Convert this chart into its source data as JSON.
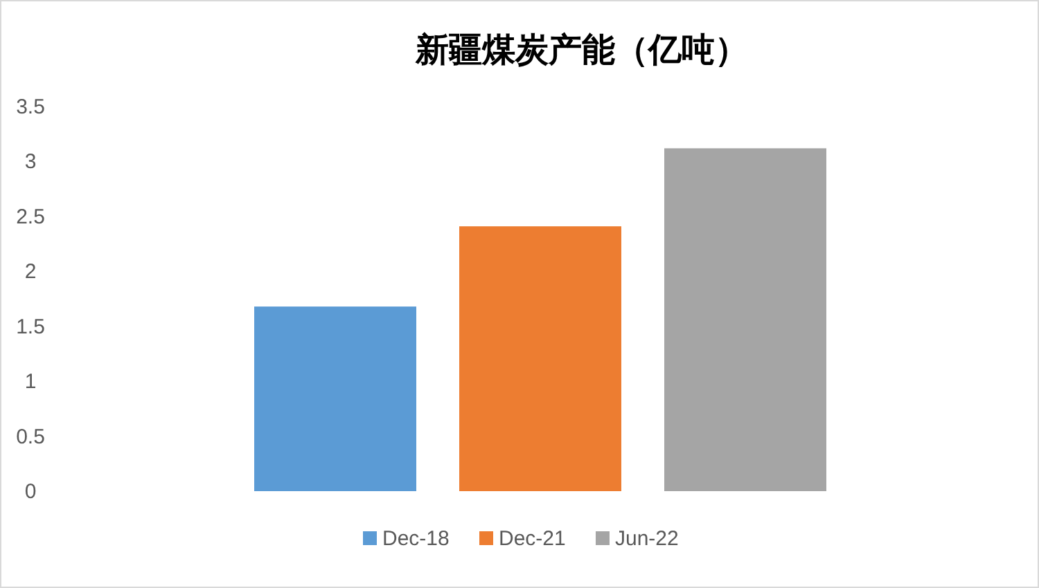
{
  "chart_data": {
    "type": "bar",
    "title": "新疆煤炭产能（亿吨）",
    "categories": [
      null
    ],
    "series": [
      {
        "name": "Dec-18",
        "color": "#5b9bd5",
        "values": [
          1.68
        ]
      },
      {
        "name": "Dec-21",
        "color": "#ed7d31",
        "values": [
          2.41
        ]
      },
      {
        "name": "Jun-22",
        "color": "#a5a5a5",
        "values": [
          3.12
        ]
      }
    ],
    "ylim": [
      0,
      3.5
    ],
    "yticks": [
      0,
      0.5,
      1,
      1.5,
      2,
      2.5,
      3,
      3.5
    ],
    "grid": false,
    "legend": "bottom"
  }
}
